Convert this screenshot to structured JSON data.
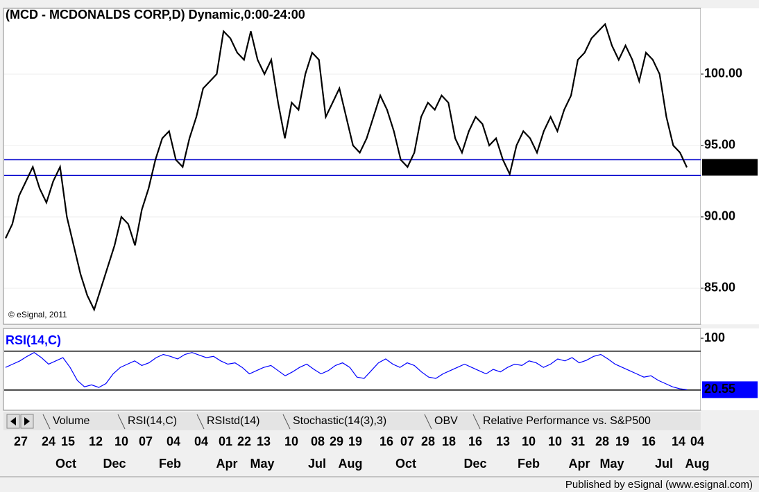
{
  "chart_data": [
    {
      "type": "line",
      "title": "(MCD - MCDONALDS CORP,D) Dynamic,0:00-24:00",
      "copyright": "© eSignal, 2011",
      "series": [
        {
          "name": "MCD",
          "color": "#000000",
          "values": [
            88.5,
            89.5,
            91.5,
            92.5,
            93.5,
            92,
            91,
            92.5,
            93.5,
            90,
            88,
            86,
            84.5,
            83.5,
            85,
            86.5,
            88,
            90,
            89.5,
            88,
            90.5,
            92,
            94,
            95.5,
            96,
            94,
            93.5,
            95.5,
            97,
            99,
            99.5,
            100,
            103,
            102.5,
            101.5,
            101,
            103,
            101,
            100,
            101,
            98,
            95.5,
            98,
            97.5,
            100,
            101.5,
            101,
            97,
            98,
            99,
            97,
            95,
            94.5,
            95.5,
            97,
            98.5,
            97.5,
            96,
            94,
            93.5,
            94.5,
            97,
            98,
            97.5,
            98.5,
            98,
            95.5,
            94.5,
            96,
            97,
            96.5,
            95,
            95.5,
            94,
            93,
            95,
            96,
            95.5,
            94.5,
            96,
            97,
            96,
            97.5,
            98.5,
            101,
            101.5,
            102.5,
            103,
            103.5,
            102,
            101,
            102,
            101,
            99.5,
            101.5,
            101,
            100,
            97,
            95,
            94.5,
            93.47
          ]
        }
      ],
      "ylim": [
        82.62,
        104.22
      ],
      "yticks": [
        {
          "value": 85,
          "label": "85.00"
        },
        {
          "value": 90,
          "label": "90.00"
        },
        {
          "value": 95,
          "label": "95.00"
        },
        {
          "value": 100,
          "label": "100.00"
        }
      ],
      "hlines": [
        94.0,
        92.9
      ],
      "hline_color": "#0000cc",
      "grid": true
    },
    {
      "type": "line",
      "title": "RSI(14,C)",
      "series": [
        {
          "name": "RSI(14,C)",
          "color": "#0000ff",
          "values": [
            55,
            60,
            65,
            72,
            78,
            70,
            60,
            65,
            70,
            55,
            35,
            25,
            28,
            24,
            30,
            45,
            55,
            60,
            65,
            58,
            62,
            70,
            75,
            72,
            68,
            75,
            78,
            74,
            70,
            72,
            65,
            60,
            62,
            55,
            45,
            50,
            55,
            58,
            50,
            42,
            48,
            55,
            60,
            52,
            45,
            50,
            58,
            62,
            55,
            40,
            38,
            50,
            62,
            68,
            60,
            55,
            62,
            58,
            48,
            40,
            38,
            45,
            50,
            55,
            60,
            55,
            50,
            45,
            52,
            48,
            55,
            60,
            58,
            65,
            62,
            55,
            60,
            68,
            65,
            70,
            62,
            66,
            72,
            75,
            68,
            60,
            55,
            50,
            45,
            40,
            42,
            35,
            30,
            25,
            22,
            20.55
          ]
        }
      ],
      "ylim": [
        -9,
        114
      ],
      "yticks": [
        100
      ],
      "hlines": [
        80,
        20
      ],
      "hline_color": "#000000",
      "grid": false
    }
  ],
  "tabs": [
    "Volume",
    "RSI(14,C)",
    "RSIstd(14)",
    "Stochastic(14(3),3)",
    "OBV",
    "Relative Performance vs. S&P500"
  ],
  "x_axis": {
    "days": [
      "27",
      "24",
      "15",
      "12",
      "10",
      "07",
      "04",
      "04",
      "01",
      "22",
      "13",
      "10",
      "08",
      "29",
      "19",
      "16",
      "07",
      "28",
      "18",
      "16",
      "13",
      "10",
      "10",
      "31",
      "28",
      "19",
      "16",
      "14",
      "04"
    ],
    "months": [
      "Oct",
      "Dec",
      "Feb",
      "Apr",
      "May",
      "Jul",
      "Aug",
      "Oct",
      "Dec",
      "Feb",
      "Apr",
      "May",
      "Jul",
      "Aug"
    ]
  },
  "footer": "Published by eSignal (www.esignal.com)"
}
